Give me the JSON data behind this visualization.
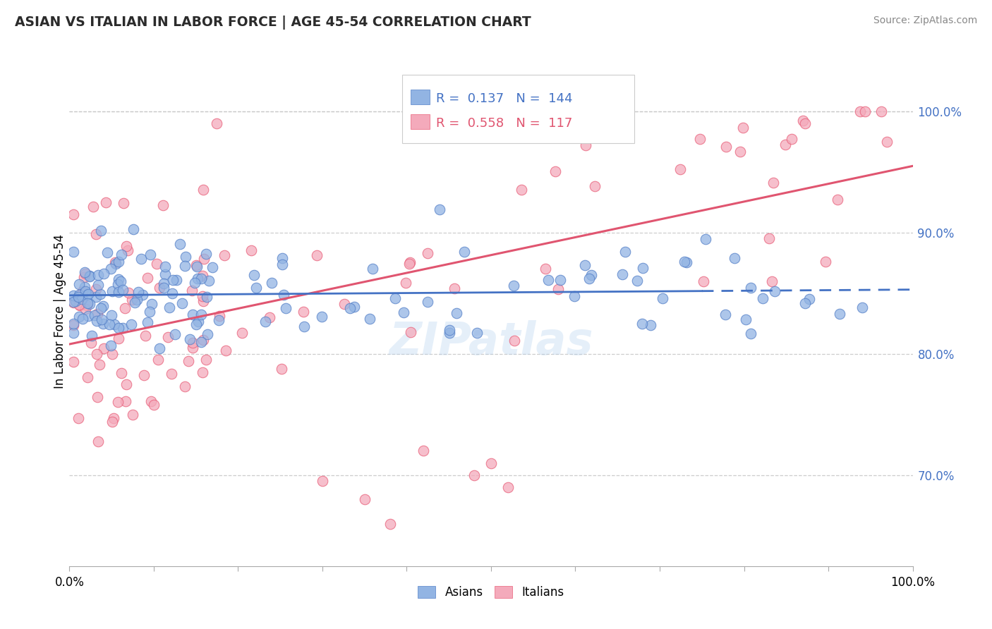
{
  "title": "ASIAN VS ITALIAN IN LABOR FORCE | AGE 45-54 CORRELATION CHART",
  "source": "Source: ZipAtlas.com",
  "ylabel": "In Labor Force | Age 45-54",
  "asian_R": 0.137,
  "asian_N": 144,
  "italian_R": 0.558,
  "italian_N": 117,
  "asian_color": "#92B4E3",
  "italian_color": "#F4AABB",
  "asian_edge_color": "#5580C8",
  "italian_edge_color": "#E8607A",
  "asian_line_color": "#4472C4",
  "italian_line_color": "#E05570",
  "right_ytick_color": "#4472C4",
  "right_yticks": [
    0.7,
    0.8,
    0.9,
    1.0
  ],
  "right_ytick_labels": [
    "70.0%",
    "80.0%",
    "90.0%",
    "100.0%"
  ],
  "xmin": 0.0,
  "xmax": 1.0,
  "ymin": 0.625,
  "ymax": 1.045,
  "background_color": "#ffffff",
  "grid_color": "#c8c8c8",
  "watermark": "ZIPatlas"
}
